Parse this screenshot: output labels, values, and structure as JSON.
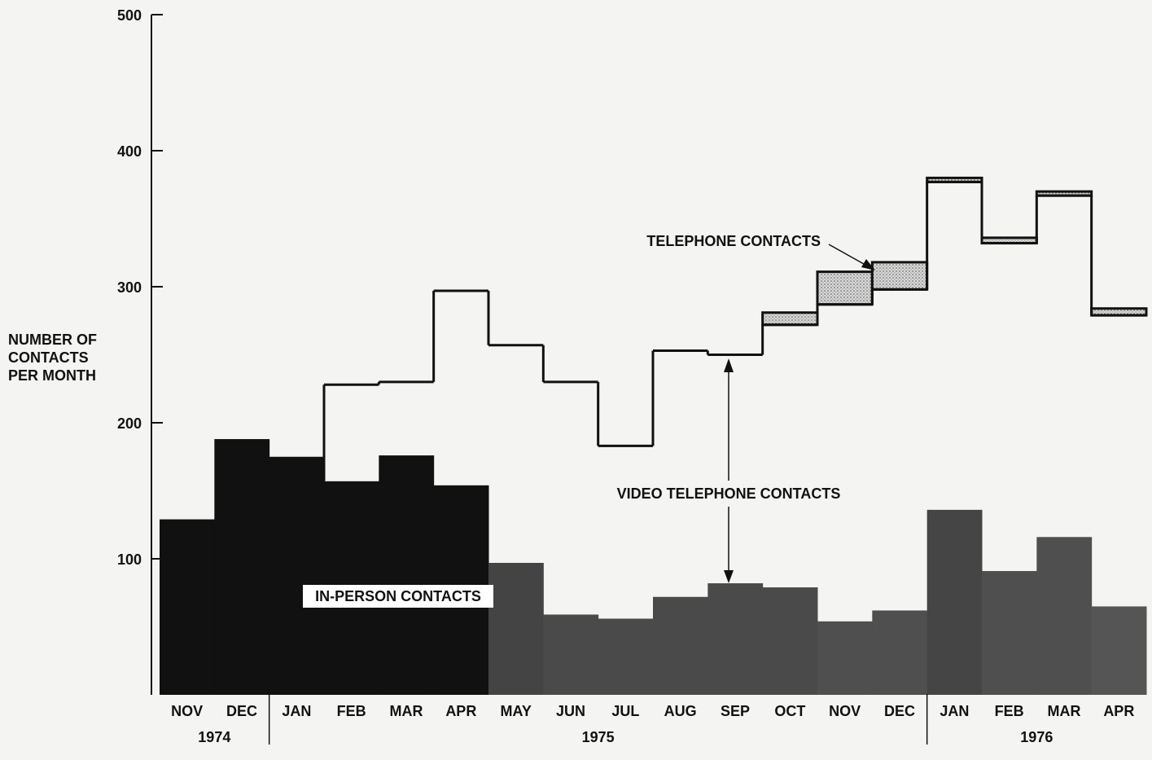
{
  "chart_data": {
    "type": "stacked-step",
    "ylabel_lines": [
      "NUMBER OF",
      "CONTACTS",
      "PER MONTH"
    ],
    "categories": [
      "NOV",
      "DEC",
      "JAN",
      "FEB",
      "MAR",
      "APR",
      "MAY",
      "JUN",
      "JUL",
      "AUG",
      "SEP",
      "OCT",
      "NOV",
      "DEC",
      "JAN",
      "FEB",
      "MAR",
      "APR"
    ],
    "year_groups": [
      {
        "label": "1974",
        "count": 2
      },
      {
        "label": "1975",
        "count": 12
      },
      {
        "label": "1976",
        "count": 4
      }
    ],
    "series": [
      {
        "name": "IN-PERSON CONTACTS",
        "color": "#555555",
        "colors": [
          "#111111",
          "#111111",
          "#111111",
          "#111111",
          "#111111",
          "#111111",
          "#444444",
          "#4a4a4a",
          "#4a4a4a",
          "#4a4a4a",
          "#4a4a4a",
          "#4a4a4a",
          "#4f4f4f",
          "#4f4f4f",
          "#454545",
          "#4f4f4f",
          "#4f4f4f",
          "#555555"
        ],
        "values": [
          129,
          188,
          175,
          157,
          176,
          154,
          97,
          59,
          56,
          72,
          82,
          79,
          54,
          62,
          136,
          91,
          116,
          65
        ]
      },
      {
        "name": "VIDEO TELEPHONE CONTACTS",
        "color": "#111111",
        "values": [
          null,
          null,
          null,
          71,
          54,
          143,
          160,
          171,
          127,
          181,
          168,
          193,
          233,
          236,
          241,
          241,
          251,
          214
        ]
      },
      {
        "name": "TELEPHONE CONTACTS",
        "color": "#c8c8c8",
        "values": [
          null,
          null,
          null,
          null,
          null,
          null,
          null,
          null,
          null,
          null,
          null,
          9,
          24,
          20,
          3,
          4,
          3,
          5
        ]
      }
    ],
    "ylim": [
      0,
      500
    ],
    "yticks": [
      100,
      200,
      300,
      400,
      500
    ]
  }
}
